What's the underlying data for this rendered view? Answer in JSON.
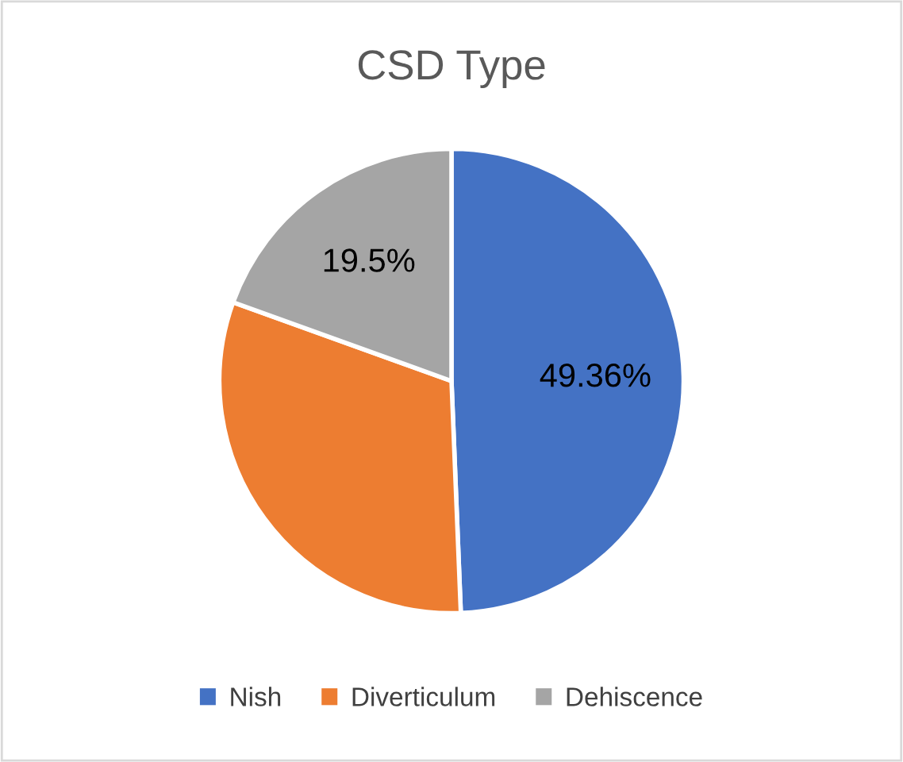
{
  "chart_data": {
    "type": "pie",
    "title": "CSD Type",
    "categories": [
      "Nish",
      "Diverticulum",
      "Dehiscence"
    ],
    "values": [
      49.36,
      31.14,
      19.5
    ],
    "value_labels": [
      "49.36%",
      null,
      "19.5%"
    ],
    "colors": [
      "#4472c4",
      "#ed7d31",
      "#a5a5a5"
    ],
    "legend": "bottom"
  }
}
